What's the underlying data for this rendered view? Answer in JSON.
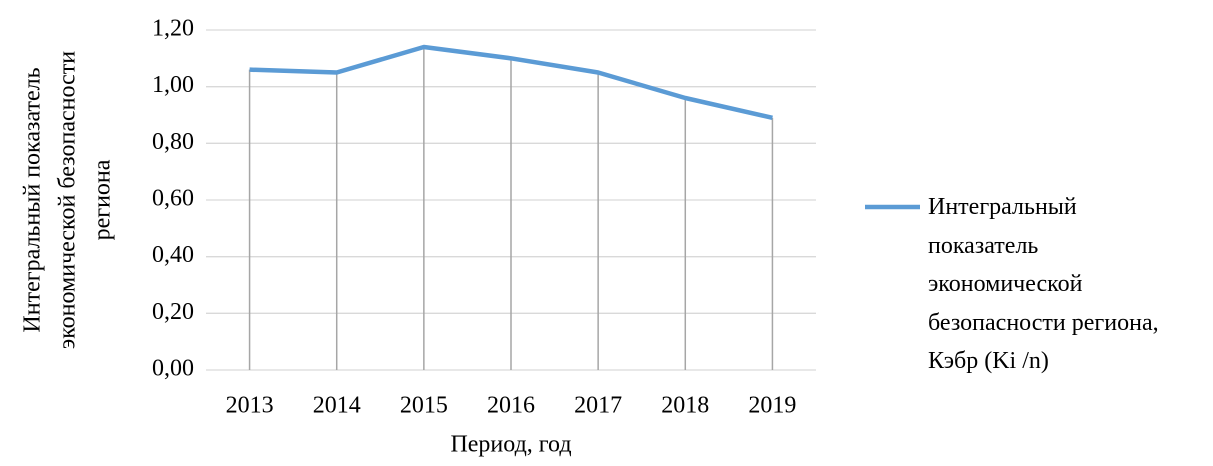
{
  "chart_data": {
    "type": "line",
    "xlabel": "Период, год",
    "ylabel": "Интегральный показатель экономической безопасности региона",
    "categories": [
      "2013",
      "2014",
      "2015",
      "2016",
      "2017",
      "2018",
      "2019"
    ],
    "series": [
      {
        "name": "Интегральный показатель экономической безопасности региона, Кэбр (Ki /n)",
        "color": "#5b9bd5",
        "values": [
          1.06,
          1.05,
          1.14,
          1.1,
          1.05,
          0.96,
          0.89
        ]
      }
    ],
    "ylim": [
      0,
      1.2
    ],
    "yticks": [
      {
        "value": 0,
        "label": "0,00"
      },
      {
        "value": 0.2,
        "label": "0,20"
      },
      {
        "value": 0.4,
        "label": "0,40"
      },
      {
        "value": 0.6,
        "label": "0,60"
      },
      {
        "value": 0.8,
        "label": "0,80"
      },
      {
        "value": 1.0,
        "label": "1,00"
      },
      {
        "value": 1.2,
        "label": "1,20"
      }
    ],
    "grid": true,
    "drop_lines": true,
    "legend": "right"
  }
}
